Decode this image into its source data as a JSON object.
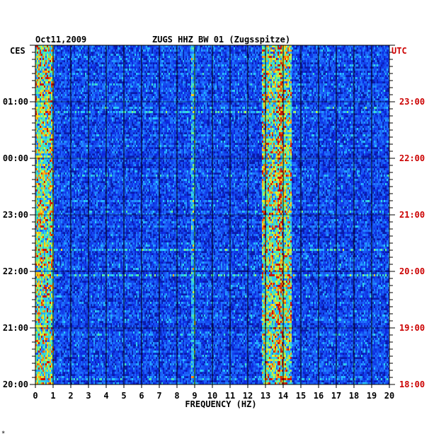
{
  "header": {
    "date": "Oct11,2009",
    "station": "ZUGS HHZ BW 01 (Zugsspitze)"
  },
  "left_tz": "CES",
  "right_tz": "UTC",
  "footer_mark": "*",
  "colors": {
    "left_text": "#000000",
    "right_text": "#cc0000",
    "background_blue": "#0a1aa8",
    "grid": "#000000"
  },
  "chart_data": {
    "type": "heatmap",
    "kind": "spectrogram",
    "xlabel": "FREQUENCY (HZ)",
    "x_ticks": [
      "0",
      "1",
      "2",
      "3",
      "4",
      "5",
      "6",
      "7",
      "8",
      "9",
      "10",
      "11",
      "12",
      "13",
      "14",
      "15",
      "16",
      "17",
      "18",
      "19",
      "20"
    ],
    "xlim": [
      0,
      20
    ],
    "left_time_ticks": [
      "01:00",
      "00:00",
      "23:00",
      "22:00",
      "21:00",
      "20:00"
    ],
    "right_time_ticks": [
      "23:00",
      "22:00",
      "21:00",
      "20:00",
      "19:00",
      "18:00"
    ],
    "rows_per_hour": 8,
    "hours_shown": 6,
    "energy_bands": [
      {
        "freq_range": [
          0,
          1
        ],
        "level": "high"
      },
      {
        "freq_range": [
          8.8,
          9.0
        ],
        "level": "medium"
      },
      {
        "freq_range": [
          12.8,
          14.5
        ],
        "level": "high"
      },
      {
        "freq_range": [
          13.7,
          14.0
        ],
        "level": "very high"
      }
    ]
  }
}
